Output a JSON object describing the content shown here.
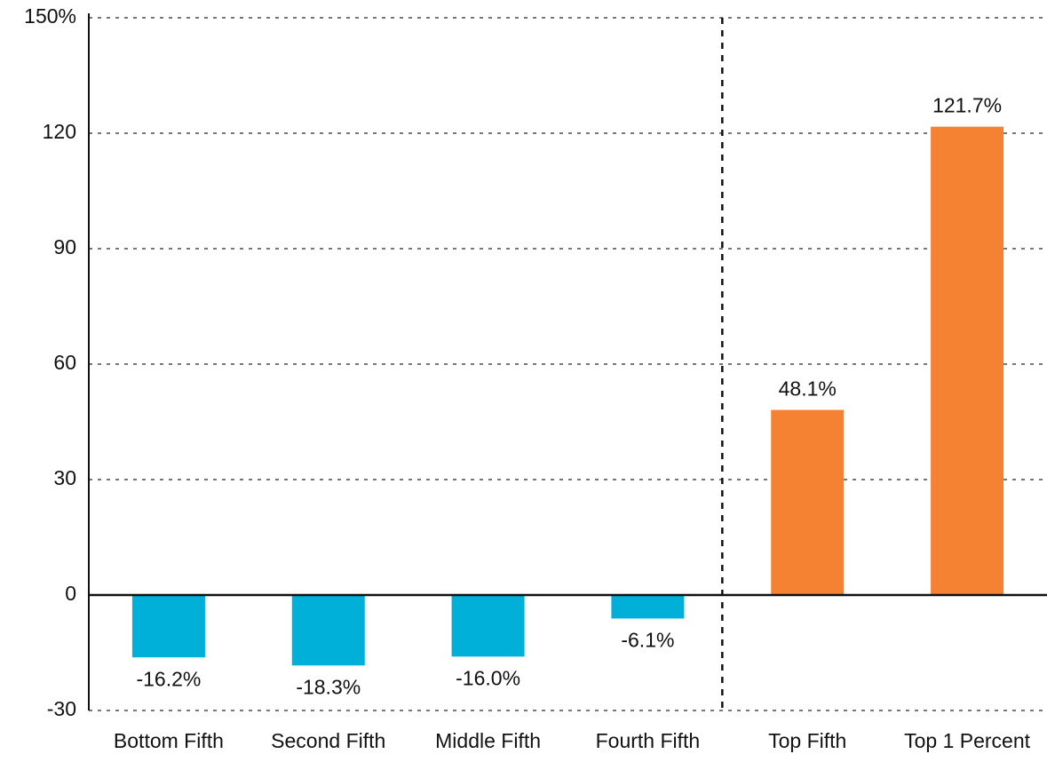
{
  "chart_data": {
    "type": "bar",
    "categories": [
      "Bottom Fifth",
      "Second Fifth",
      "Middle Fifth",
      "Fourth Fifth",
      "Top Fifth",
      "Top 1 Percent"
    ],
    "values": [
      -16.2,
      -18.3,
      -16.0,
      -6.1,
      48.1,
      121.7
    ],
    "value_labels": [
      "-16.2%",
      "-18.3%",
      "-16.0%",
      "-6.1%",
      "48.1%",
      "121.7%"
    ],
    "colors": [
      "#00b0d8",
      "#00b0d8",
      "#00b0d8",
      "#00b0d8",
      "#f58233",
      "#f58233"
    ],
    "ylim": [
      -30,
      150
    ],
    "yticks": [
      -30,
      0,
      30,
      60,
      90,
      {
        "value": 150,
        "label": "150%"
      },
      120
    ],
    "grid": true
  }
}
